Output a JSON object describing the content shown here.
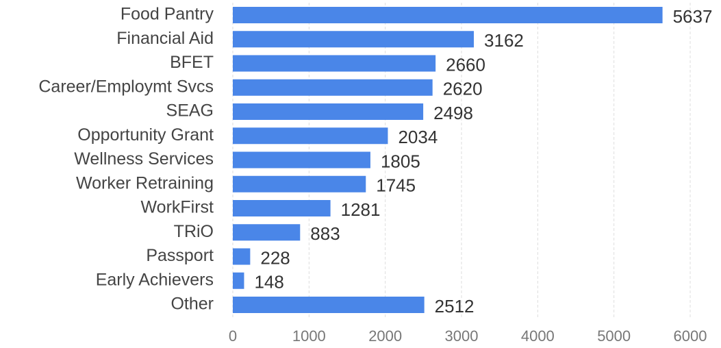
{
  "chart_data": {
    "type": "bar",
    "orientation": "horizontal",
    "categories": [
      "Food Pantry",
      "Financial Aid",
      "BFET",
      "Career/Employmt Svcs",
      "SEAG",
      "Opportunity Grant",
      "Wellness Services",
      "Worker Retraining",
      "WorkFirst",
      "TRiO",
      "Passport",
      "Early Achievers",
      "Other"
    ],
    "values": [
      5637,
      3162,
      2660,
      2620,
      2498,
      2034,
      1805,
      1745,
      1281,
      883,
      228,
      148,
      2512
    ],
    "color": "#4a86e8",
    "xlim": [
      0,
      6000
    ],
    "xticks": [
      0,
      1000,
      2000,
      3000,
      4000,
      5000,
      6000
    ],
    "grid": true
  }
}
